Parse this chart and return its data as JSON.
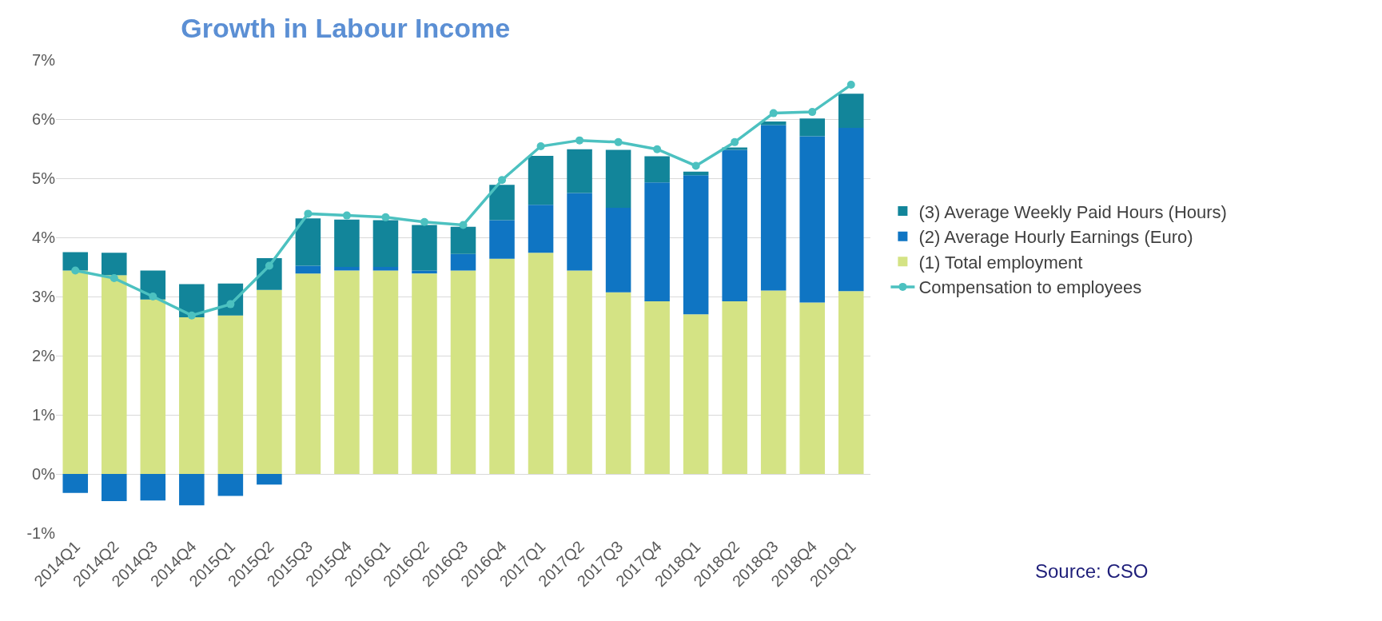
{
  "chart_data": {
    "type": "bar",
    "title": "Growth in Labour Income",
    "categories": [
      "2014Q1",
      "2014Q2",
      "2014Q3",
      "2014Q4",
      "2015Q1",
      "2015Q2",
      "2015Q3",
      "2015Q4",
      "2016Q1",
      "2016Q2",
      "2016Q3",
      "2016Q4",
      "2017Q1",
      "2017Q2",
      "2017Q3",
      "2017Q4",
      "2018Q1",
      "2018Q2",
      "2018Q3",
      "2018Q4",
      "2019Q1"
    ],
    "stacked": true,
    "series": [
      {
        "name": "(1) Total employment",
        "color": "#d4e384",
        "values": [
          3.44,
          3.36,
          2.95,
          2.65,
          2.68,
          3.11,
          3.39,
          3.44,
          3.44,
          3.39,
          3.44,
          3.64,
          3.74,
          3.44,
          3.07,
          2.92,
          2.7,
          2.92,
          3.1,
          2.9,
          3.09
        ]
      },
      {
        "name": "(2) Average Hourly Earnings (Euro)",
        "color": "#0f75c3",
        "values": [
          -0.32,
          -0.46,
          -0.45,
          -0.53,
          -0.37,
          -0.18,
          0.13,
          0.06,
          0.06,
          0.05,
          0.28,
          0.65,
          0.81,
          1.31,
          1.43,
          2.01,
          2.35,
          2.56,
          2.8,
          2.81,
          2.76
        ]
      },
      {
        "name": "(3) Average Weekly Paid Hours (Hours)",
        "color": "#12859a",
        "values": [
          0.31,
          0.38,
          0.49,
          0.56,
          0.54,
          0.54,
          0.8,
          0.8,
          0.79,
          0.77,
          0.46,
          0.6,
          0.83,
          0.74,
          0.98,
          0.44,
          0.06,
          0.04,
          0.06,
          0.3,
          0.58
        ]
      },
      {
        "name": "Compensation to employees",
        "type": "line",
        "color": "#4cc1c0",
        "values": [
          3.44,
          3.31,
          3.0,
          2.68,
          2.87,
          3.52,
          4.4,
          4.37,
          4.34,
          4.26,
          4.21,
          4.97,
          5.54,
          5.64,
          5.61,
          5.49,
          5.21,
          5.61,
          6.1,
          6.12,
          6.58
        ]
      }
    ],
    "ylim": [
      -1,
      7
    ],
    "yticks": [
      {
        "value": -1,
        "label": "-1%"
      },
      {
        "value": 0,
        "label": "0%"
      },
      {
        "value": 1,
        "label": "1%"
      },
      {
        "value": 2,
        "label": "2%"
      },
      {
        "value": 3,
        "label": "3%"
      },
      {
        "value": 4,
        "label": "4%"
      },
      {
        "value": 5,
        "label": "5%"
      },
      {
        "value": 6,
        "label": "6%"
      },
      {
        "value": 7,
        "label": "7%"
      }
    ],
    "grid": "y",
    "legend": "right",
    "marker": "circle",
    "annotations": [
      "Source: CSO"
    ]
  }
}
